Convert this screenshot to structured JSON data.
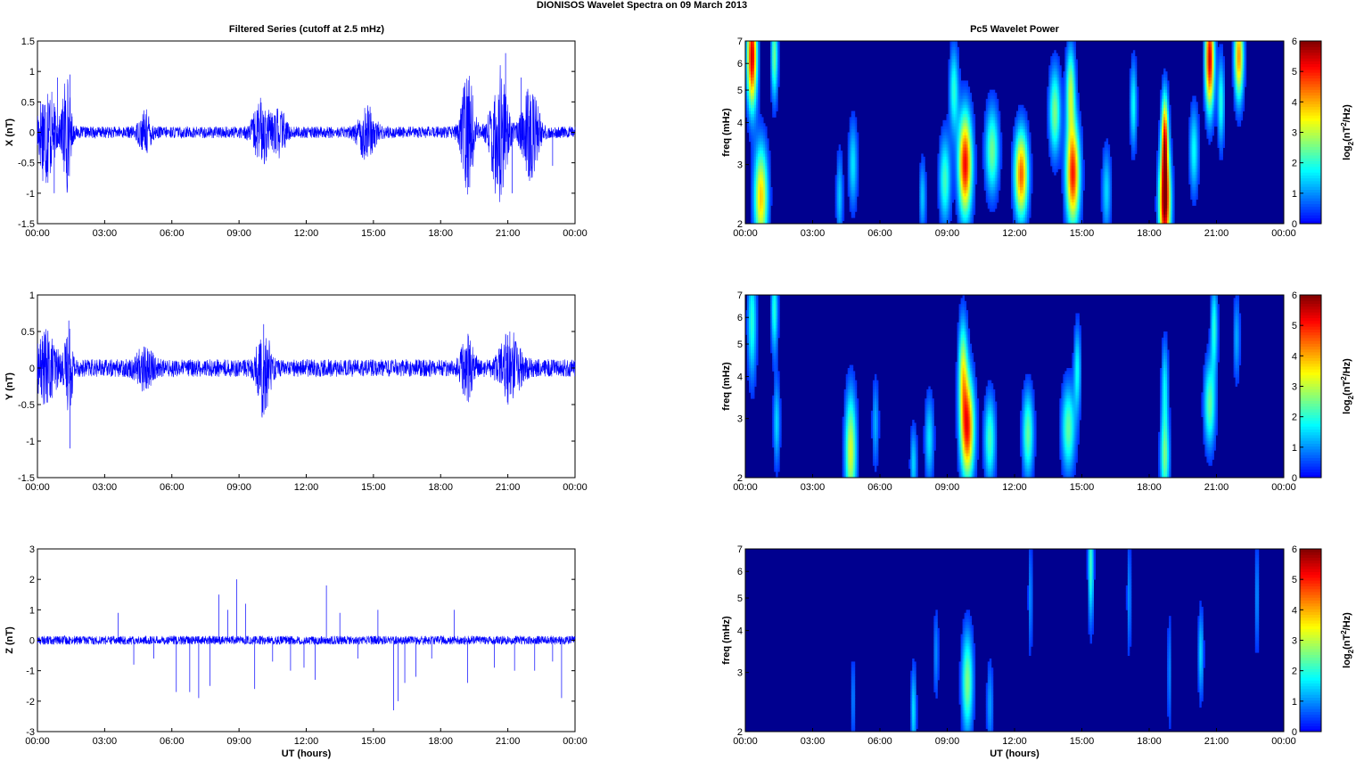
{
  "figure_title": "DIONISOS Wavelet Spectra on 09 March     2013",
  "left_title": "Filtered Series (cutoff at 2.5 mHz)",
  "right_title": "Pc5 Wavelet Power",
  "x_tick_labels": [
    "00:00",
    "03:00",
    "06:00",
    "09:00",
    "12:00",
    "15:00",
    "18:00",
    "21:00",
    "00:00"
  ],
  "xlabel": "UT (hours)",
  "colors": {
    "trace": "#0000ff",
    "axis": "#000000",
    "background": "#00008f"
  },
  "colormap": "jet",
  "chart_data": [
    {
      "type": "line",
      "panel": "X",
      "title": "Filtered Series (cutoff at 2.5 mHz)",
      "ylabel": "X (nT)",
      "xlabel": "",
      "xlim": [
        0,
        24
      ],
      "ylim": [
        -1.5,
        1.5
      ],
      "y_ticks": [
        -1.5,
        -1,
        -0.5,
        0,
        0.5,
        1,
        1.5
      ],
      "y_tick_labels": [
        "-1.5",
        "-1",
        "-0.5",
        "0",
        "0.5",
        "1",
        "1.5"
      ],
      "noise_amplitude": 0.08,
      "bursts": [
        {
          "t": 0.4,
          "w": 0.4,
          "a": 0.7
        },
        {
          "t": 1.3,
          "w": 0.2,
          "a": 0.8
        },
        {
          "t": 4.8,
          "w": 0.3,
          "a": 0.25
        },
        {
          "t": 10.0,
          "w": 0.4,
          "a": 0.4
        },
        {
          "t": 10.8,
          "w": 0.3,
          "a": 0.3
        },
        {
          "t": 14.7,
          "w": 0.4,
          "a": 0.35
        },
        {
          "t": 19.2,
          "w": 0.3,
          "a": 0.8
        },
        {
          "t": 20.6,
          "w": 0.4,
          "a": 0.9
        },
        {
          "t": 22.0,
          "w": 0.4,
          "a": 0.6
        }
      ],
      "spikes": [
        [
          0.75,
          -1.0
        ],
        [
          0.9,
          0.9
        ],
        [
          1.45,
          0.95
        ],
        [
          19.25,
          -0.9
        ],
        [
          20.9,
          1.3
        ],
        [
          21.2,
          -1.0
        ],
        [
          21.6,
          0.9
        ],
        [
          23.0,
          -0.55
        ]
      ]
    },
    {
      "type": "line",
      "panel": "Y",
      "ylabel": "Y (nT)",
      "xlabel": "",
      "xlim": [
        0,
        24
      ],
      "ylim": [
        -1.5,
        1
      ],
      "y_ticks": [
        -1.5,
        -1,
        -0.5,
        0,
        0.5,
        1
      ],
      "y_tick_labels": [
        "-1.5",
        "-1",
        "-0.5",
        "0",
        "0.5",
        "1"
      ],
      "noise_amplitude": 0.1,
      "bursts": [
        {
          "t": 0.4,
          "w": 0.5,
          "a": 0.35
        },
        {
          "t": 1.4,
          "w": 0.2,
          "a": 0.4
        },
        {
          "t": 4.8,
          "w": 0.4,
          "a": 0.2
        },
        {
          "t": 10.1,
          "w": 0.3,
          "a": 0.5
        },
        {
          "t": 19.2,
          "w": 0.3,
          "a": 0.3
        },
        {
          "t": 21.1,
          "w": 0.5,
          "a": 0.35
        }
      ],
      "spikes": [
        [
          1.45,
          -1.1
        ],
        [
          1.4,
          0.65
        ],
        [
          10.1,
          0.6
        ],
        [
          10.2,
          -0.55
        ],
        [
          19.3,
          -0.4
        ],
        [
          21.0,
          0.45
        ]
      ]
    },
    {
      "type": "line",
      "panel": "Z",
      "ylabel": "Z (nT)",
      "xlabel": "UT (hours)",
      "xlim": [
        0,
        24
      ],
      "ylim": [
        -3,
        3
      ],
      "y_ticks": [
        -3,
        -2,
        -1,
        0,
        1,
        2,
        3
      ],
      "y_tick_labels": [
        "-3",
        "-2",
        "-1",
        "0",
        "1",
        "2",
        "3"
      ],
      "noise_amplitude": 0.12,
      "bursts": [],
      "spikes": [
        [
          3.6,
          0.9
        ],
        [
          4.3,
          -0.8
        ],
        [
          5.2,
          -0.6
        ],
        [
          6.2,
          -1.7
        ],
        [
          6.8,
          -1.7
        ],
        [
          7.2,
          -1.9
        ],
        [
          7.7,
          -1.5
        ],
        [
          8.1,
          1.5
        ],
        [
          8.5,
          1.0
        ],
        [
          8.9,
          2.0
        ],
        [
          9.3,
          1.2
        ],
        [
          9.7,
          -1.6
        ],
        [
          10.5,
          -0.7
        ],
        [
          11.3,
          -1.0
        ],
        [
          11.9,
          -0.9
        ],
        [
          12.4,
          -1.3
        ],
        [
          12.9,
          1.8
        ],
        [
          13.5,
          0.9
        ],
        [
          14.3,
          -0.6
        ],
        [
          15.2,
          1.0
        ],
        [
          15.9,
          -2.3
        ],
        [
          16.1,
          -2.0
        ],
        [
          16.4,
          -1.4
        ],
        [
          16.9,
          -1.2
        ],
        [
          17.6,
          -0.6
        ],
        [
          18.6,
          1.0
        ],
        [
          19.2,
          -1.4
        ],
        [
          20.4,
          -0.9
        ],
        [
          21.3,
          -1.0
        ],
        [
          22.2,
          -1.0
        ],
        [
          23.0,
          -0.7
        ],
        [
          23.4,
          -1.9
        ]
      ]
    },
    {
      "type": "heatmap",
      "panel": "X",
      "title": "Pc5 Wavelet Power",
      "ylabel": "freq (mHz)",
      "xlabel": "",
      "xlim": [
        0,
        24
      ],
      "ylim": [
        2,
        7
      ],
      "y_scale": "log",
      "y_ticks": [
        2,
        3,
        4,
        5,
        6,
        7
      ],
      "y_tick_labels": [
        "2",
        "3",
        "4",
        "5",
        "6",
        "7"
      ],
      "colorbar_label": "log2(nT2/Hz)",
      "colorbar_ticks": [
        0,
        1,
        2,
        3,
        4,
        5,
        6
      ],
      "clim": [
        0,
        6
      ],
      "blobs": [
        {
          "t": 0.3,
          "f": 6.3,
          "v": 5.5,
          "wt": 0.22,
          "wf": 0.35
        },
        {
          "t": 0.7,
          "f": 2.4,
          "v": 3.8,
          "wt": 0.3,
          "wf": 0.35
        },
        {
          "t": 1.3,
          "f": 6.3,
          "v": 2.5,
          "wt": 0.15,
          "wf": 0.3
        },
        {
          "t": 4.2,
          "f": 2.4,
          "v": 1.4,
          "wt": 0.15,
          "wf": 0.3
        },
        {
          "t": 4.8,
          "f": 3.0,
          "v": 1.6,
          "wt": 0.2,
          "wf": 0.3
        },
        {
          "t": 7.9,
          "f": 2.4,
          "v": 1.4,
          "wt": 0.15,
          "wf": 0.25
        },
        {
          "t": 8.9,
          "f": 2.7,
          "v": 2.2,
          "wt": 0.25,
          "wf": 0.3
        },
        {
          "t": 9.8,
          "f": 3.0,
          "v": 5.2,
          "wt": 0.3,
          "wf": 0.35
        },
        {
          "t": 9.3,
          "f": 5.0,
          "v": 2.0,
          "wt": 0.2,
          "wf": 0.3
        },
        {
          "t": 11.0,
          "f": 3.3,
          "v": 2.5,
          "wt": 0.3,
          "wf": 0.3
        },
        {
          "t": 12.3,
          "f": 2.8,
          "v": 4.5,
          "wt": 0.3,
          "wf": 0.3
        },
        {
          "t": 13.8,
          "f": 4.3,
          "v": 2.6,
          "wt": 0.25,
          "wf": 0.3
        },
        {
          "t": 14.6,
          "f": 2.8,
          "v": 5.0,
          "wt": 0.3,
          "wf": 0.35
        },
        {
          "t": 14.5,
          "f": 5.0,
          "v": 2.8,
          "wt": 0.2,
          "wf": 0.3
        },
        {
          "t": 16.1,
          "f": 2.5,
          "v": 1.5,
          "wt": 0.2,
          "wf": 0.3
        },
        {
          "t": 17.3,
          "f": 4.5,
          "v": 1.8,
          "wt": 0.15,
          "wf": 0.3
        },
        {
          "t": 18.7,
          "f": 2.3,
          "v": 6.0,
          "wt": 0.25,
          "wf": 0.35
        },
        {
          "t": 18.7,
          "f": 3.6,
          "v": 4.5,
          "wt": 0.15,
          "wf": 0.3
        },
        {
          "t": 20.0,
          "f": 3.3,
          "v": 1.8,
          "wt": 0.2,
          "wf": 0.3
        },
        {
          "t": 20.7,
          "f": 6.2,
          "v": 5.5,
          "wt": 0.2,
          "wf": 0.35
        },
        {
          "t": 21.2,
          "f": 4.6,
          "v": 2.0,
          "wt": 0.15,
          "wf": 0.3
        },
        {
          "t": 22.0,
          "f": 6.3,
          "v": 4.2,
          "wt": 0.2,
          "wf": 0.3
        }
      ]
    },
    {
      "type": "heatmap",
      "panel": "Y",
      "ylabel": "freq (mHz)",
      "xlabel": "",
      "xlim": [
        0,
        24
      ],
      "ylim": [
        2,
        7
      ],
      "y_scale": "log",
      "y_ticks": [
        2,
        3,
        4,
        5,
        6,
        7
      ],
      "y_tick_labels": [
        "2",
        "3",
        "4",
        "5",
        "6",
        "7"
      ],
      "colorbar_label": "log2(nT2/Hz)",
      "colorbar_ticks": [
        0,
        1,
        2,
        3,
        4,
        5,
        6
      ],
      "clim": [
        0,
        6
      ],
      "blobs": [
        {
          "t": 0.3,
          "f": 5.8,
          "v": 2.0,
          "wt": 0.2,
          "wf": 0.4
        },
        {
          "t": 1.3,
          "f": 6.3,
          "v": 2.0,
          "wt": 0.15,
          "wf": 0.3
        },
        {
          "t": 1.4,
          "f": 2.9,
          "v": 1.5,
          "wt": 0.15,
          "wf": 0.3
        },
        {
          "t": 4.7,
          "f": 2.4,
          "v": 3.2,
          "wt": 0.25,
          "wf": 0.4
        },
        {
          "t": 5.8,
          "f": 2.9,
          "v": 1.2,
          "wt": 0.15,
          "wf": 0.3
        },
        {
          "t": 7.5,
          "f": 2.2,
          "v": 1.5,
          "wt": 0.15,
          "wf": 0.25
        },
        {
          "t": 8.2,
          "f": 2.6,
          "v": 1.6,
          "wt": 0.2,
          "wf": 0.3
        },
        {
          "t": 9.9,
          "f": 2.8,
          "v": 5.0,
          "wt": 0.3,
          "wf": 0.35
        },
        {
          "t": 9.7,
          "f": 4.2,
          "v": 2.8,
          "wt": 0.2,
          "wf": 0.35
        },
        {
          "t": 10.9,
          "f": 2.6,
          "v": 2.2,
          "wt": 0.25,
          "wf": 0.3
        },
        {
          "t": 12.6,
          "f": 2.7,
          "v": 2.4,
          "wt": 0.25,
          "wf": 0.3
        },
        {
          "t": 14.4,
          "f": 2.8,
          "v": 2.4,
          "wt": 0.3,
          "wf": 0.3
        },
        {
          "t": 14.8,
          "f": 4.2,
          "v": 1.8,
          "wt": 0.15,
          "wf": 0.3
        },
        {
          "t": 18.7,
          "f": 2.3,
          "v": 2.5,
          "wt": 0.2,
          "wf": 0.3
        },
        {
          "t": 18.7,
          "f": 3.8,
          "v": 1.6,
          "wt": 0.15,
          "wf": 0.3
        },
        {
          "t": 20.7,
          "f": 3.3,
          "v": 2.4,
          "wt": 0.25,
          "wf": 0.3
        },
        {
          "t": 20.9,
          "f": 5.6,
          "v": 2.0,
          "wt": 0.15,
          "wf": 0.3
        },
        {
          "t": 21.9,
          "f": 5.2,
          "v": 1.2,
          "wt": 0.15,
          "wf": 0.3
        }
      ]
    },
    {
      "type": "heatmap",
      "panel": "Z",
      "ylabel": "freq (mHz)",
      "xlabel": "UT (hours)",
      "xlim": [
        0,
        24
      ],
      "ylim": [
        2,
        7
      ],
      "y_scale": "log",
      "y_ticks": [
        2,
        3,
        4,
        5,
        6,
        7
      ],
      "y_tick_labels": [
        "2",
        "3",
        "4",
        "5",
        "6",
        "7"
      ],
      "colorbar_label": "log2(nT2/Hz)",
      "colorbar_ticks": [
        0,
        1,
        2,
        3,
        4,
        5,
        6
      ],
      "clim": [
        0,
        6
      ],
      "blobs": [
        {
          "t": 4.8,
          "f": 2.5,
          "v": 0.9,
          "wt": 0.1,
          "wf": 0.3
        },
        {
          "t": 7.5,
          "f": 2.3,
          "v": 1.6,
          "wt": 0.12,
          "wf": 0.3
        },
        {
          "t": 8.5,
          "f": 3.4,
          "v": 1.0,
          "wt": 0.12,
          "wf": 0.3
        },
        {
          "t": 9.9,
          "f": 2.8,
          "v": 2.6,
          "wt": 0.25,
          "wf": 0.35
        },
        {
          "t": 10.9,
          "f": 2.4,
          "v": 1.1,
          "wt": 0.15,
          "wf": 0.3
        },
        {
          "t": 12.7,
          "f": 5.0,
          "v": 1.0,
          "wt": 0.1,
          "wf": 0.4
        },
        {
          "t": 15.4,
          "f": 6.3,
          "v": 2.2,
          "wt": 0.12,
          "wf": 0.4
        },
        {
          "t": 17.1,
          "f": 5.0,
          "v": 1.0,
          "wt": 0.1,
          "wf": 0.4
        },
        {
          "t": 18.9,
          "f": 3.0,
          "v": 0.9,
          "wt": 0.1,
          "wf": 0.4
        },
        {
          "t": 20.3,
          "f": 3.4,
          "v": 1.5,
          "wt": 0.12,
          "wf": 0.3
        },
        {
          "t": 22.8,
          "f": 5.0,
          "v": 1.0,
          "wt": 0.1,
          "wf": 0.4
        }
      ]
    }
  ]
}
